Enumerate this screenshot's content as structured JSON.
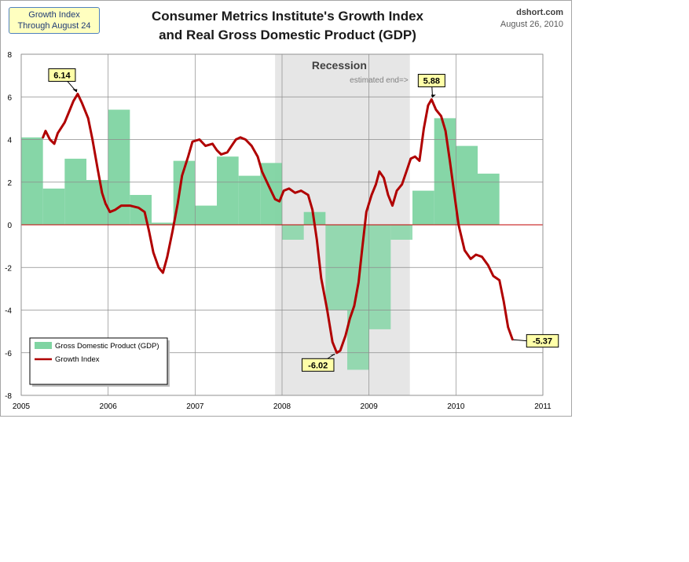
{
  "badge": {
    "line1": "Growth Index",
    "line2": "Through August 24"
  },
  "title": {
    "line1": "Consumer Metrics Institute's Growth Index",
    "line2": "and  Real Gross Domestic Product (GDP)"
  },
  "source": {
    "site": "dshort.com",
    "date": "August 26, 2010"
  },
  "chart_data": {
    "type": "bar",
    "xlim": [
      2005,
      2011
    ],
    "ylim": [
      -8,
      8
    ],
    "y_ticks": [
      8,
      6,
      4,
      2,
      0,
      -2,
      -4,
      -6,
      -8
    ],
    "x_ticks": [
      "2005",
      "2006",
      "2007",
      "2008",
      "2009",
      "2010",
      "2011"
    ],
    "grid": true,
    "legend_placement": "bottom-left",
    "recession": {
      "label": "Recession",
      "note": "estimated end=>",
      "start": 2007.92,
      "end": 2009.47
    },
    "series": [
      {
        "name": "Gross Domestic Product (GDP)",
        "kind": "bar",
        "color": "#7fd4a2",
        "quarters": [
          {
            "start": 2005.0,
            "value": 4.1
          },
          {
            "start": 2005.25,
            "value": 1.7
          },
          {
            "start": 2005.5,
            "value": 3.1
          },
          {
            "start": 2005.75,
            "value": 2.1
          },
          {
            "start": 2006.0,
            "value": 5.4
          },
          {
            "start": 2006.25,
            "value": 1.4
          },
          {
            "start": 2006.5,
            "value": 0.1
          },
          {
            "start": 2006.75,
            "value": 3.0
          },
          {
            "start": 2007.0,
            "value": 0.9
          },
          {
            "start": 2007.25,
            "value": 3.2
          },
          {
            "start": 2007.5,
            "value": 2.3
          },
          {
            "start": 2007.75,
            "value": 2.9
          },
          {
            "start": 2008.0,
            "value": -0.7
          },
          {
            "start": 2008.25,
            "value": 0.6
          },
          {
            "start": 2008.5,
            "value": -4.0
          },
          {
            "start": 2008.75,
            "value": -6.8
          },
          {
            "start": 2009.0,
            "value": -4.9
          },
          {
            "start": 2009.25,
            "value": -0.7
          },
          {
            "start": 2009.5,
            "value": 1.6
          },
          {
            "start": 2009.75,
            "value": 5.0
          },
          {
            "start": 2010.0,
            "value": 3.7
          },
          {
            "start": 2010.25,
            "value": 2.4
          }
        ]
      },
      {
        "name": "Growth Index",
        "kind": "line",
        "color": "#b00000",
        "points": [
          [
            2005.25,
            4.1
          ],
          [
            2005.28,
            4.4
          ],
          [
            2005.33,
            4.0
          ],
          [
            2005.38,
            3.8
          ],
          [
            2005.42,
            4.3
          ],
          [
            2005.5,
            4.8
          ],
          [
            2005.56,
            5.4
          ],
          [
            2005.6,
            5.8
          ],
          [
            2005.65,
            6.14
          ],
          [
            2005.7,
            5.7
          ],
          [
            2005.77,
            5.0
          ],
          [
            2005.82,
            4.0
          ],
          [
            2005.88,
            2.6
          ],
          [
            2005.93,
            1.5
          ],
          [
            2005.97,
            1.0
          ],
          [
            2006.02,
            0.6
          ],
          [
            2006.08,
            0.7
          ],
          [
            2006.15,
            0.9
          ],
          [
            2006.25,
            0.9
          ],
          [
            2006.35,
            0.8
          ],
          [
            2006.42,
            0.6
          ],
          [
            2006.47,
            -0.3
          ],
          [
            2006.52,
            -1.3
          ],
          [
            2006.58,
            -2.0
          ],
          [
            2006.63,
            -2.25
          ],
          [
            2006.68,
            -1.5
          ],
          [
            2006.74,
            -0.3
          ],
          [
            2006.8,
            1.0
          ],
          [
            2006.85,
            2.3
          ],
          [
            2006.92,
            3.2
          ],
          [
            2006.97,
            3.9
          ],
          [
            2007.05,
            4.0
          ],
          [
            2007.12,
            3.7
          ],
          [
            2007.2,
            3.8
          ],
          [
            2007.25,
            3.5
          ],
          [
            2007.3,
            3.3
          ],
          [
            2007.37,
            3.4
          ],
          [
            2007.42,
            3.7
          ],
          [
            2007.47,
            4.0
          ],
          [
            2007.52,
            4.1
          ],
          [
            2007.58,
            4.0
          ],
          [
            2007.65,
            3.7
          ],
          [
            2007.72,
            3.2
          ],
          [
            2007.77,
            2.5
          ],
          [
            2007.85,
            1.8
          ],
          [
            2007.92,
            1.2
          ],
          [
            2007.97,
            1.1
          ],
          [
            2008.02,
            1.6
          ],
          [
            2008.08,
            1.7
          ],
          [
            2008.15,
            1.5
          ],
          [
            2008.22,
            1.6
          ],
          [
            2008.3,
            1.4
          ],
          [
            2008.35,
            0.7
          ],
          [
            2008.4,
            -0.7
          ],
          [
            2008.45,
            -2.5
          ],
          [
            2008.52,
            -4.0
          ],
          [
            2008.58,
            -5.5
          ],
          [
            2008.63,
            -6.0
          ],
          [
            2008.67,
            -5.9
          ],
          [
            2008.73,
            -5.2
          ],
          [
            2008.78,
            -4.4
          ],
          [
            2008.83,
            -3.8
          ],
          [
            2008.88,
            -2.7
          ],
          [
            2008.92,
            -1.2
          ],
          [
            2008.97,
            0.6
          ],
          [
            2009.03,
            1.4
          ],
          [
            2009.08,
            1.9
          ],
          [
            2009.12,
            2.5
          ],
          [
            2009.17,
            2.2
          ],
          [
            2009.22,
            1.4
          ],
          [
            2009.27,
            0.9
          ],
          [
            2009.32,
            1.6
          ],
          [
            2009.38,
            1.9
          ],
          [
            2009.43,
            2.5
          ],
          [
            2009.48,
            3.1
          ],
          [
            2009.53,
            3.2
          ],
          [
            2009.58,
            3.0
          ],
          [
            2009.63,
            4.5
          ],
          [
            2009.68,
            5.6
          ],
          [
            2009.72,
            5.88
          ],
          [
            2009.77,
            5.4
          ],
          [
            2009.83,
            5.1
          ],
          [
            2009.88,
            4.4
          ],
          [
            2009.93,
            3.0
          ],
          [
            2009.98,
            1.5
          ],
          [
            2010.03,
            0.0
          ],
          [
            2010.1,
            -1.2
          ],
          [
            2010.17,
            -1.6
          ],
          [
            2010.23,
            -1.4
          ],
          [
            2010.3,
            -1.5
          ],
          [
            2010.37,
            -1.9
          ],
          [
            2010.43,
            -2.4
          ],
          [
            2010.5,
            -2.6
          ],
          [
            2010.55,
            -3.6
          ],
          [
            2010.6,
            -4.8
          ],
          [
            2010.65,
            -5.37
          ]
        ]
      }
    ],
    "annotations": [
      {
        "label": "6.14",
        "x": 2005.65,
        "y": 6.14
      },
      {
        "label": "-6.02",
        "x": 2008.63,
        "y": -6.02
      },
      {
        "label": "5.88",
        "x": 2009.72,
        "y": 5.88
      },
      {
        "label": "-5.37",
        "x": 2010.65,
        "y": -5.37
      }
    ]
  }
}
